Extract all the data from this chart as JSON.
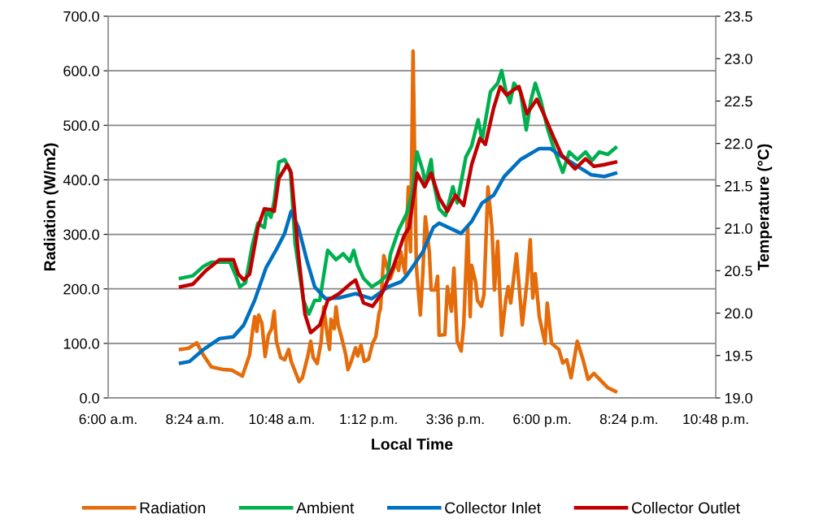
{
  "chart_data": {
    "type": "line",
    "xlabel": "Local Time",
    "ylabel": "Radiation (W/m2)",
    "y2label": "Temperature (°C)",
    "xlim": [
      6,
      22.8
    ],
    "xticks": [
      {
        "value": 6,
        "label": "6:00 a.m."
      },
      {
        "value": 8.4,
        "label": "8:24 a.m."
      },
      {
        "value": 10.8,
        "label": "10:48 a.m."
      },
      {
        "value": 13.2,
        "label": "1:12 p.m."
      },
      {
        "value": 15.6,
        "label": "3:36 p.m."
      },
      {
        "value": 18,
        "label": "6:00 p.m."
      },
      {
        "value": 20.4,
        "label": "8:24 p.m."
      },
      {
        "value": 22.8,
        "label": "10:48 p.m."
      }
    ],
    "ylim": [
      0,
      700
    ],
    "yticks": [
      {
        "value": 0,
        "label": "0.0"
      },
      {
        "value": 100,
        "label": "100.0"
      },
      {
        "value": 200,
        "label": "200.0"
      },
      {
        "value": 300,
        "label": "300.0"
      },
      {
        "value": 400,
        "label": "400.0"
      },
      {
        "value": 500,
        "label": "500.0"
      },
      {
        "value": 600,
        "label": "600.0"
      },
      {
        "value": 700,
        "label": "700.0"
      }
    ],
    "y2lim": [
      19,
      23.5
    ],
    "y2ticks": [
      {
        "value": 19,
        "label": "19.0"
      },
      19.5,
      {
        "value": 20,
        "label": "20.0"
      },
      20.5,
      {
        "value": 21,
        "label": "21.0"
      },
      21.5,
      {
        "value": 22,
        "label": "22.0"
      },
      22.5,
      {
        "value": 23,
        "label": "23.0"
      },
      23.5
    ],
    "grid": "y",
    "legend": "bottom",
    "marker": "none",
    "line_style": "solid",
    "series": [
      {
        "name": "Radiation",
        "color": "#e46c0a",
        "x": [
          8.0,
          8.22,
          8.45,
          8.63,
          8.85,
          9.19,
          9.42,
          9.71,
          9.91,
          10.0,
          10.05,
          10.11,
          10.16,
          10.25,
          10.34,
          10.43,
          10.52,
          10.59,
          10.65,
          10.77,
          10.88,
          10.99,
          11.06,
          11.15,
          11.28,
          11.37,
          11.51,
          11.6,
          11.67,
          11.78,
          11.89,
          11.96,
          12.05,
          12.12,
          12.16,
          12.25,
          12.3,
          12.36,
          12.45,
          12.57,
          12.63,
          12.72,
          12.84,
          12.9,
          12.99,
          13.08,
          13.2,
          13.31,
          13.4,
          13.49,
          13.53,
          13.62,
          13.8,
          13.96,
          14.03,
          14.09,
          14.21,
          14.3,
          14.36,
          14.43,
          14.52,
          14.63,
          14.7,
          14.77,
          14.88,
          14.93,
          15.04,
          15.11,
          15.15,
          15.31,
          15.38,
          15.49,
          15.56,
          15.65,
          15.76,
          15.83,
          15.94,
          16.01,
          16.05,
          16.16,
          16.21,
          16.32,
          16.39,
          16.5,
          16.61,
          16.68,
          16.77,
          16.88,
          17.0,
          17.06,
          17.13,
          17.29,
          17.45,
          17.58,
          17.67,
          17.74,
          17.81,
          17.92,
          18.08,
          18.14,
          18.26,
          18.46,
          18.57,
          18.68,
          18.8,
          18.97,
          19.13,
          19.27,
          19.43,
          19.65,
          19.81,
          20.03
        ],
        "values": [
          89,
          91,
          101,
          79,
          57,
          52,
          51,
          40,
          79,
          127,
          149,
          122,
          152,
          137,
          76,
          115,
          127,
          159,
          104,
          74,
          70,
          89,
          67,
          52,
          30,
          37,
          74,
          104,
          74,
          63,
          104,
          167,
          119,
          89,
          144,
          127,
          167,
          134,
          112,
          79,
          52,
          67,
          92,
          77,
          97,
          67,
          71,
          100,
          112,
          155,
          164,
          261,
          219,
          249,
          234,
          268,
          228,
          387,
          268,
          636,
          243,
          152,
          228,
          332,
          268,
          198,
          198,
          223,
          115,
          116,
          204,
          159,
          238,
          104,
          86,
          134,
          313,
          149,
          243,
          213,
          179,
          168,
          189,
          387,
          313,
          198,
          287,
          115,
          183,
          204,
          174,
          264,
          134,
          213,
          290,
          183,
          228,
          149,
          100,
          174,
          100,
          89,
          64,
          70,
          37,
          104,
          70,
          34,
          45,
          30,
          19,
          12
        ]
      },
      {
        "name": "Ambient",
        "color": "#00b050",
        "axis": "y2",
        "x": [
          8.0,
          8.34,
          8.63,
          8.85,
          9.37,
          9.53,
          9.64,
          9.8,
          9.98,
          10.14,
          10.32,
          10.39,
          10.5,
          10.59,
          10.72,
          10.88,
          11.04,
          11.17,
          11.4,
          11.55,
          11.71,
          11.85,
          12.07,
          12.3,
          12.5,
          12.68,
          12.79,
          12.9,
          13.06,
          13.29,
          13.51,
          13.74,
          13.8,
          14.03,
          14.25,
          14.41,
          14.54,
          14.7,
          14.77,
          14.93,
          14.99,
          15.15,
          15.33,
          15.53,
          15.65,
          15.89,
          16.05,
          16.23,
          16.34,
          16.57,
          16.77,
          16.88,
          17.0,
          17.11,
          17.22,
          17.4,
          17.56,
          17.69,
          17.81,
          17.96,
          18.14,
          18.3,
          18.57,
          18.75,
          18.97,
          19.2,
          19.38,
          19.58,
          19.81,
          20.03
        ],
        "values": [
          20.41,
          20.44,
          20.55,
          20.6,
          20.6,
          20.44,
          20.31,
          20.36,
          20.79,
          21.06,
          21.01,
          21.22,
          21.13,
          21.32,
          21.78,
          21.81,
          21.68,
          20.82,
          20.15,
          19.99,
          20.15,
          20.15,
          20.74,
          20.63,
          20.7,
          20.61,
          20.74,
          20.56,
          20.41,
          20.31,
          20.37,
          20.46,
          20.69,
          20.98,
          21.17,
          21.42,
          21.9,
          21.68,
          21.52,
          21.81,
          21.56,
          21.23,
          21.15,
          21.49,
          21.3,
          21.84,
          21.97,
          22.28,
          22.04,
          22.61,
          22.71,
          22.86,
          22.61,
          22.48,
          22.71,
          22.61,
          22.16,
          22.51,
          22.71,
          22.51,
          22.19,
          21.97,
          21.66,
          21.9,
          21.81,
          21.9,
          21.8,
          21.9,
          21.87,
          21.95
        ]
      },
      {
        "name": "Collector Inlet",
        "color": "#0070c0",
        "axis": "y2",
        "x": [
          8.0,
          8.25,
          8.63,
          9.08,
          9.46,
          9.75,
          10.05,
          10.36,
          10.65,
          10.88,
          11.06,
          11.26,
          11.49,
          11.71,
          12.01,
          12.39,
          12.84,
          13.29,
          13.74,
          14.1,
          14.25,
          14.7,
          14.99,
          15.15,
          15.76,
          16.05,
          16.34,
          16.66,
          16.95,
          17.4,
          17.92,
          18.23,
          18.46,
          18.91,
          19.36,
          19.72,
          20.03
        ],
        "values": [
          19.41,
          19.43,
          19.57,
          19.7,
          19.72,
          19.86,
          20.15,
          20.53,
          20.75,
          20.94,
          21.2,
          21.01,
          20.63,
          20.31,
          20.17,
          20.18,
          20.23,
          20.17,
          20.31,
          20.37,
          20.44,
          20.72,
          21.01,
          21.06,
          20.94,
          21.08,
          21.3,
          21.39,
          21.61,
          21.81,
          21.94,
          21.94,
          21.87,
          21.75,
          21.63,
          21.61,
          21.65
        ]
      },
      {
        "name": "Collector Outlet",
        "color": "#c00000",
        "axis": "y2",
        "x": [
          8.0,
          8.34,
          8.7,
          9.08,
          9.46,
          9.6,
          9.75,
          9.91,
          10.14,
          10.32,
          10.5,
          10.59,
          10.72,
          10.95,
          11.06,
          11.26,
          11.44,
          11.6,
          11.85,
          12.07,
          12.39,
          12.68,
          12.84,
          13.06,
          13.31,
          13.58,
          13.87,
          14.18,
          14.32,
          14.54,
          14.75,
          14.93,
          15.15,
          15.38,
          15.6,
          15.83,
          16.05,
          16.28,
          16.43,
          16.66,
          16.84,
          17.02,
          17.24,
          17.36,
          17.58,
          17.85,
          18.01,
          18.3,
          18.53,
          18.91,
          19.2,
          19.43,
          19.72,
          20.03
        ],
        "values": [
          20.31,
          20.34,
          20.5,
          20.63,
          20.63,
          20.46,
          20.39,
          20.46,
          21.01,
          21.23,
          21.22,
          21.2,
          21.59,
          21.75,
          21.65,
          20.69,
          19.99,
          19.77,
          19.86,
          20.15,
          20.23,
          20.34,
          20.39,
          20.12,
          20.08,
          20.24,
          20.53,
          20.91,
          21.01,
          21.65,
          21.49,
          21.65,
          21.36,
          21.2,
          21.39,
          21.27,
          21.75,
          22.06,
          21.99,
          22.42,
          22.67,
          22.57,
          22.64,
          22.67,
          22.35,
          22.52,
          22.38,
          22.09,
          21.87,
          21.7,
          21.82,
          21.73,
          21.75,
          21.78
        ]
      }
    ]
  }
}
